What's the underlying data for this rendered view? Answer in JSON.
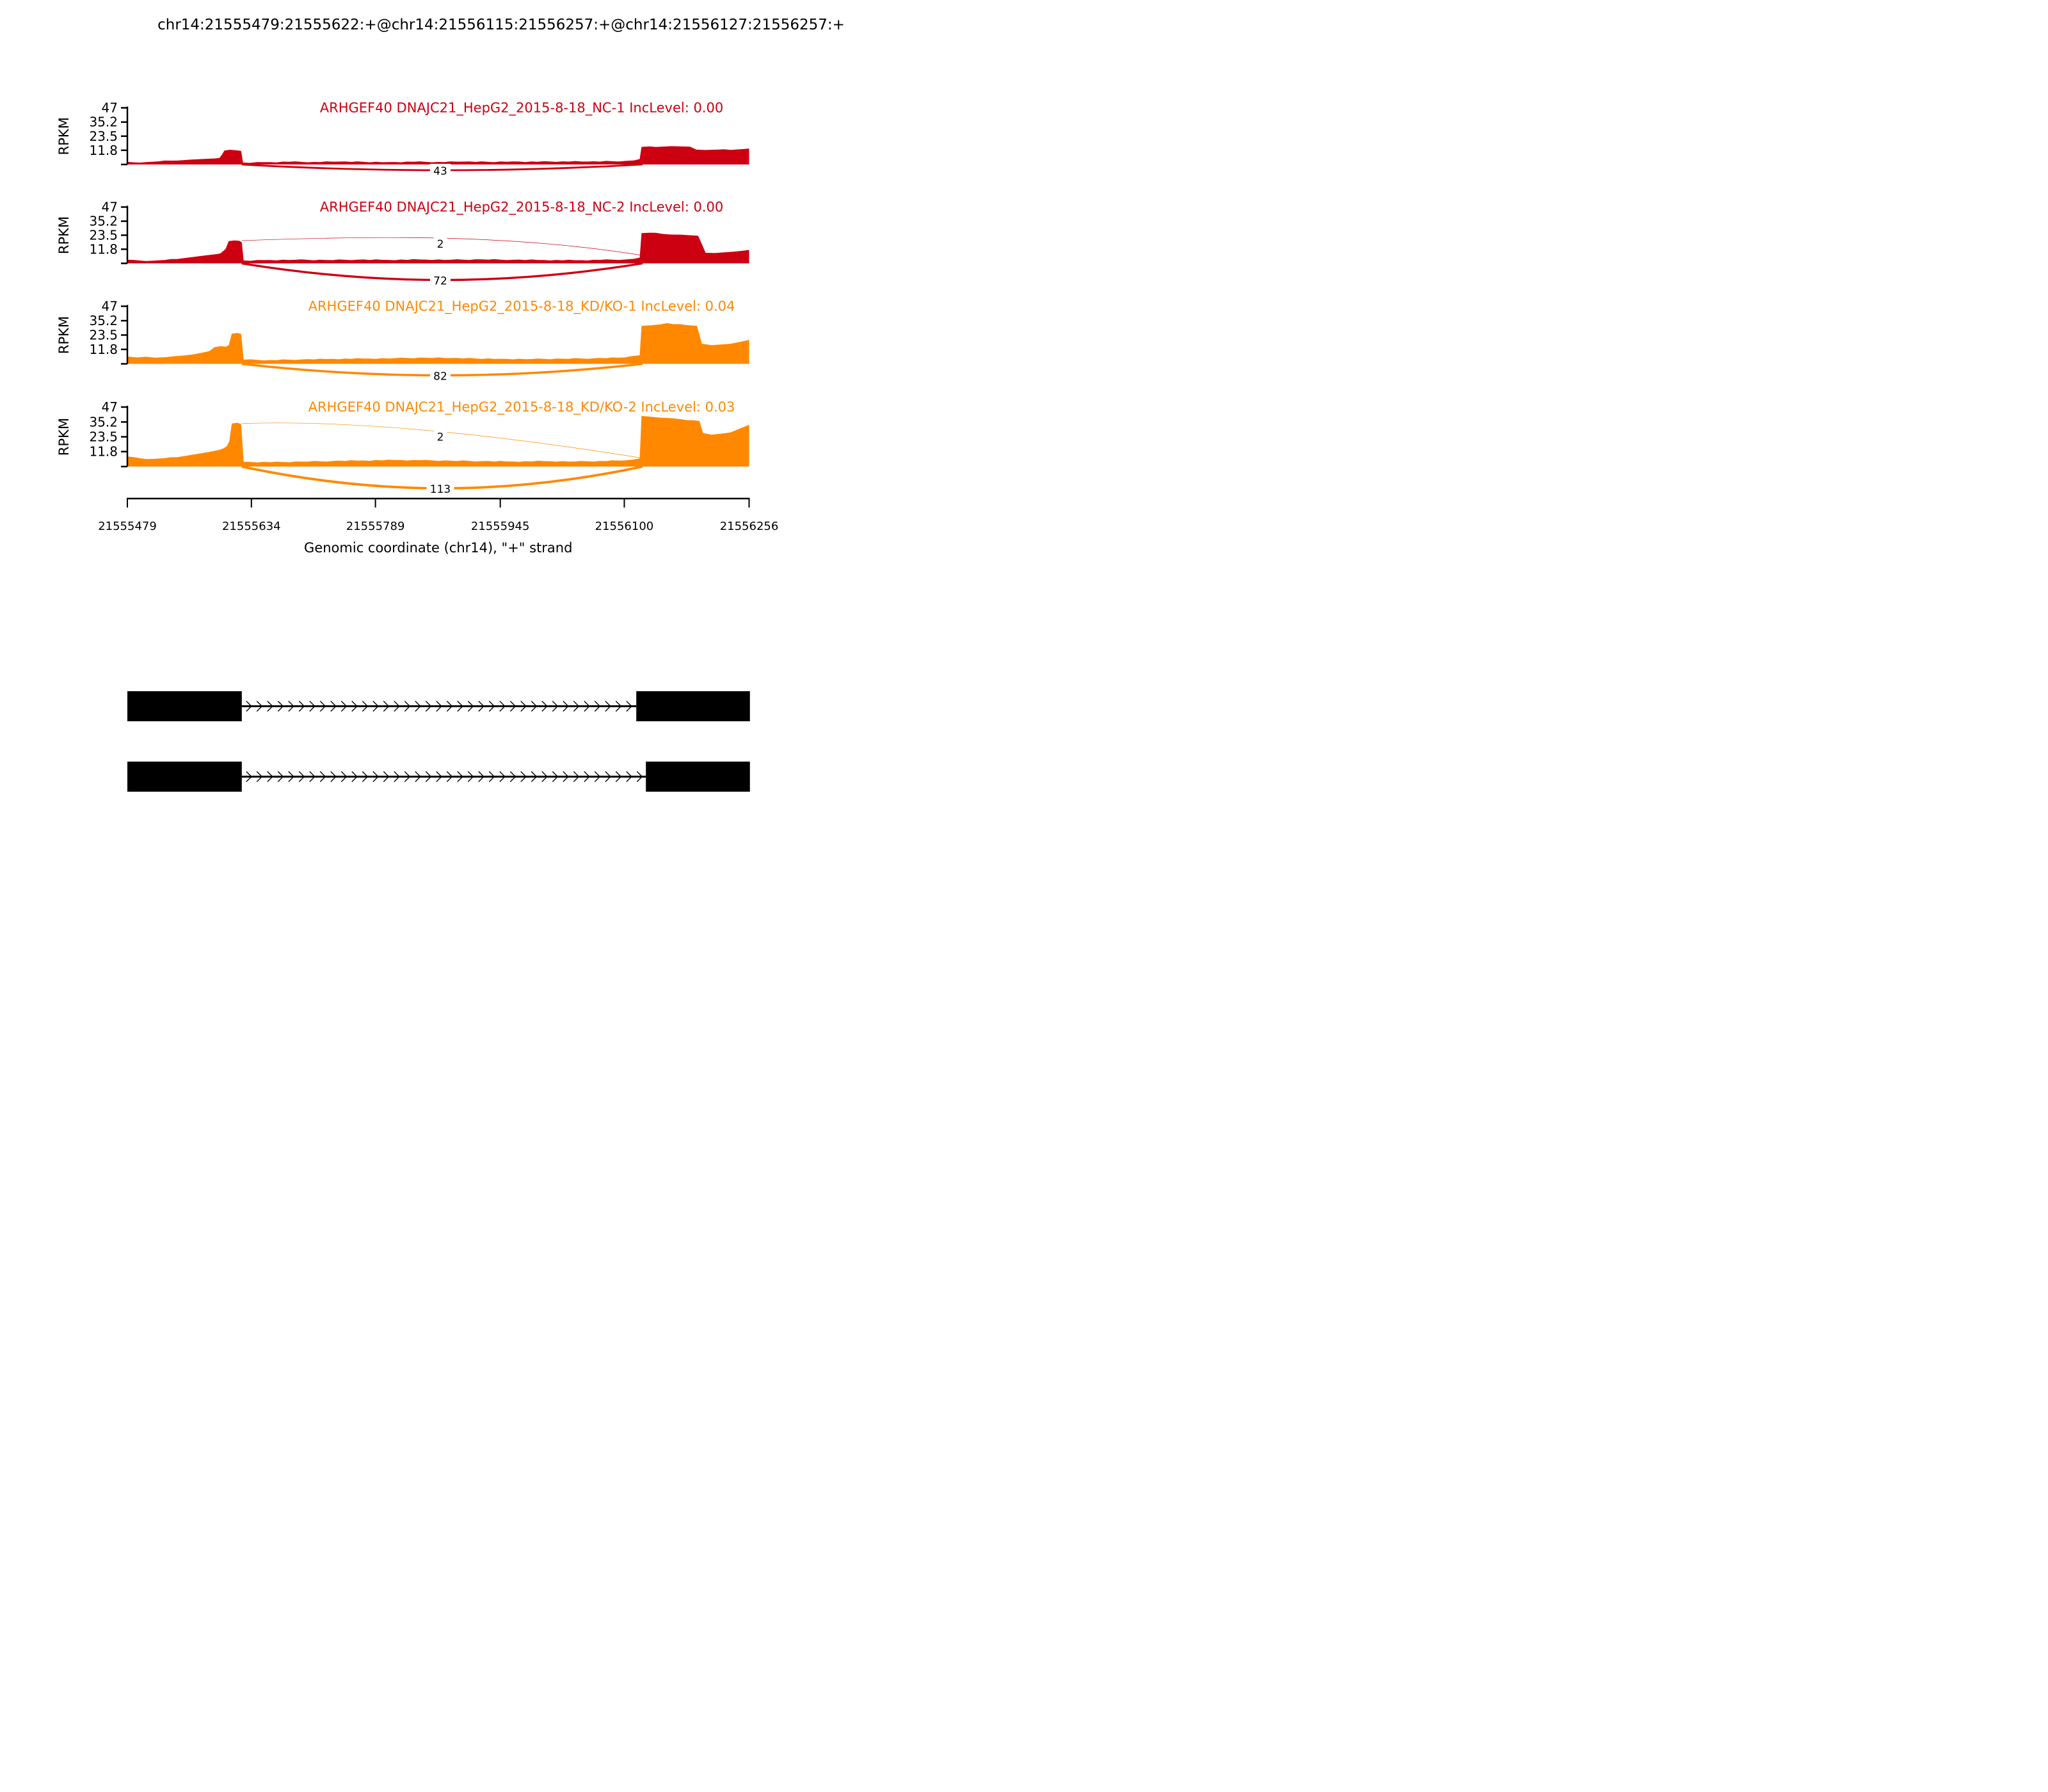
{
  "title": "chr14:21555479:21555622:+@chr14:21556115:21556257:+@chr14:21556127:21556257:+",
  "chart_data": {
    "type": "area",
    "description": "RNA-seq sashimi plot: read coverage (RPKM) with splice-junction read counts for 4 samples, plus two isoform models below",
    "x_axis": {
      "label": "Genomic coordinate (chr14), \"+\" strand",
      "ticks": [
        "21555479",
        "21555634",
        "21555789",
        "21555945",
        "21556100",
        "21556256"
      ],
      "range": [
        21555479,
        21556256
      ]
    },
    "y_axis": {
      "label": "RPKM",
      "ticks": [
        47,
        35.2,
        23.5,
        11.8
      ],
      "range": [
        0,
        47
      ]
    },
    "tracks": [
      {
        "label": "ARHGEF40 DNAJC21_HepG2_2015-8-18_NC-1 IncLevel: 0.00",
        "inc_level": "0.00",
        "color": "#CC0011",
        "junctions": [
          {
            "count": 43,
            "arc": "below"
          }
        ],
        "coverage_profile": [
          [
            0,
            2.2
          ],
          [
            0.01,
            1.8
          ],
          [
            0.03,
            2.0
          ],
          [
            0.05,
            2.6
          ],
          [
            0.07,
            3.2
          ],
          [
            0.09,
            3.6
          ],
          [
            0.1,
            4.0
          ],
          [
            0.115,
            4.4
          ],
          [
            0.13,
            4.8
          ],
          [
            0.14,
            5.0
          ],
          [
            0.148,
            5.4
          ],
          [
            0.152,
            8.0
          ],
          [
            0.156,
            11.6
          ],
          [
            0.165,
            12.2
          ],
          [
            0.175,
            11.8
          ],
          [
            0.183,
            11.2
          ],
          [
            0.186,
            1.6
          ],
          [
            0.22,
            1.9
          ],
          [
            0.26,
            2.3
          ],
          [
            0.3,
            2.1
          ],
          [
            0.34,
            2.4
          ],
          [
            0.38,
            2.2
          ],
          [
            0.42,
            2.0
          ],
          [
            0.46,
            2.3
          ],
          [
            0.5,
            2.1
          ],
          [
            0.54,
            2.4
          ],
          [
            0.58,
            2.2
          ],
          [
            0.62,
            2.5
          ],
          [
            0.66,
            2.3
          ],
          [
            0.7,
            2.6
          ],
          [
            0.74,
            2.4
          ],
          [
            0.78,
            2.7
          ],
          [
            0.8,
            2.9
          ],
          [
            0.815,
            3.4
          ],
          [
            0.824,
            4.5
          ],
          [
            0.827,
            14.6
          ],
          [
            0.84,
            15.0
          ],
          [
            0.86,
            14.8
          ],
          [
            0.875,
            15.2
          ],
          [
            0.89,
            15.0
          ],
          [
            0.905,
            14.8
          ],
          [
            0.915,
            12.4
          ],
          [
            0.93,
            12.0
          ],
          [
            0.95,
            12.4
          ],
          [
            0.97,
            12.1
          ],
          [
            0.985,
            12.6
          ],
          [
            1,
            13.2
          ]
        ]
      },
      {
        "label": "ARHGEF40 DNAJC21_HepG2_2015-8-18_NC-2 IncLevel: 0.00",
        "inc_level": "0.00",
        "color": "#CC0011",
        "junctions": [
          {
            "count": 2,
            "arc": "above",
            "from_rpkm": 19,
            "to_rpkm": 7
          },
          {
            "count": 72,
            "arc": "below"
          }
        ],
        "coverage_profile": [
          [
            0,
            3.0
          ],
          [
            0.02,
            2.4
          ],
          [
            0.04,
            2.2
          ],
          [
            0.06,
            2.8
          ],
          [
            0.08,
            3.6
          ],
          [
            0.095,
            4.6
          ],
          [
            0.11,
            5.6
          ],
          [
            0.125,
            6.6
          ],
          [
            0.135,
            7.2
          ],
          [
            0.145,
            7.8
          ],
          [
            0.15,
            8.4
          ],
          [
            0.158,
            12.0
          ],
          [
            0.163,
            18.6
          ],
          [
            0.172,
            19.2
          ],
          [
            0.18,
            18.8
          ],
          [
            0.184,
            17.6
          ],
          [
            0.187,
            2.4
          ],
          [
            0.22,
            2.7
          ],
          [
            0.27,
            3.0
          ],
          [
            0.32,
            2.8
          ],
          [
            0.37,
            3.1
          ],
          [
            0.42,
            2.9
          ],
          [
            0.47,
            3.2
          ],
          [
            0.52,
            3.0
          ],
          [
            0.57,
            3.3
          ],
          [
            0.62,
            3.0
          ],
          [
            0.67,
            2.8
          ],
          [
            0.72,
            2.6
          ],
          [
            0.76,
            2.9
          ],
          [
            0.8,
            3.2
          ],
          [
            0.815,
            3.8
          ],
          [
            0.824,
            4.8
          ],
          [
            0.827,
            25.2
          ],
          [
            0.84,
            25.6
          ],
          [
            0.86,
            24.6
          ],
          [
            0.88,
            24.0
          ],
          [
            0.9,
            23.6
          ],
          [
            0.918,
            23.0
          ],
          [
            0.924,
            16.0
          ],
          [
            0.93,
            8.8
          ],
          [
            0.945,
            8.6
          ],
          [
            0.96,
            9.2
          ],
          [
            0.975,
            9.8
          ],
          [
            0.99,
            10.6
          ],
          [
            1,
            11.2
          ]
        ]
      },
      {
        "label": "ARHGEF40 DNAJC21_HepG2_2015-8-18_KD/KO-1 IncLevel: 0.04",
        "inc_level": "0.04",
        "color": "#FF8800",
        "junctions": [
          {
            "count": 82,
            "arc": "below"
          }
        ],
        "coverage_profile": [
          [
            0,
            6.0
          ],
          [
            0.015,
            5.2
          ],
          [
            0.03,
            5.8
          ],
          [
            0.045,
            5.0
          ],
          [
            0.06,
            5.4
          ],
          [
            0.075,
            6.2
          ],
          [
            0.09,
            6.8
          ],
          [
            0.105,
            7.6
          ],
          [
            0.115,
            8.6
          ],
          [
            0.125,
            9.6
          ],
          [
            0.132,
            10.4
          ],
          [
            0.14,
            13.6
          ],
          [
            0.15,
            14.4
          ],
          [
            0.158,
            14.0
          ],
          [
            0.163,
            15.2
          ],
          [
            0.168,
            24.6
          ],
          [
            0.177,
            25.2
          ],
          [
            0.183,
            24.4
          ],
          [
            0.187,
            3.4
          ],
          [
            0.23,
            3.1
          ],
          [
            0.28,
            3.6
          ],
          [
            0.33,
            4.0
          ],
          [
            0.38,
            4.3
          ],
          [
            0.43,
            4.6
          ],
          [
            0.48,
            5.0
          ],
          [
            0.52,
            4.7
          ],
          [
            0.56,
            4.4
          ],
          [
            0.6,
            4.1
          ],
          [
            0.65,
            3.9
          ],
          [
            0.7,
            4.2
          ],
          [
            0.75,
            4.5
          ],
          [
            0.79,
            5.0
          ],
          [
            0.81,
            6.2
          ],
          [
            0.824,
            7.0
          ],
          [
            0.827,
            31.0
          ],
          [
            0.84,
            31.4
          ],
          [
            0.858,
            32.2
          ],
          [
            0.868,
            33.2
          ],
          [
            0.878,
            32.4
          ],
          [
            0.9,
            31.6
          ],
          [
            0.916,
            31.0
          ],
          [
            0.924,
            16.4
          ],
          [
            0.94,
            15.2
          ],
          [
            0.955,
            15.8
          ],
          [
            0.97,
            16.4
          ],
          [
            0.985,
            17.8
          ],
          [
            1,
            19.6
          ]
        ]
      },
      {
        "label": "ARHGEF40 DNAJC21_HepG2_2015-8-18_KD/KO-2 IncLevel: 0.03",
        "inc_level": "0.03",
        "color": "#FF8800",
        "junctions": [
          {
            "count": 2,
            "arc": "above",
            "from_rpkm": 34,
            "to_rpkm": 7
          },
          {
            "count": 113,
            "arc": "below"
          }
        ],
        "coverage_profile": [
          [
            0,
            8.0
          ],
          [
            0.02,
            6.6
          ],
          [
            0.04,
            6.0
          ],
          [
            0.06,
            6.6
          ],
          [
            0.08,
            7.4
          ],
          [
            0.095,
            8.6
          ],
          [
            0.11,
            9.8
          ],
          [
            0.12,
            10.6
          ],
          [
            0.13,
            11.4
          ],
          [
            0.14,
            12.4
          ],
          [
            0.148,
            13.2
          ],
          [
            0.154,
            14.2
          ],
          [
            0.16,
            16.0
          ],
          [
            0.164,
            20.0
          ],
          [
            0.168,
            34.0
          ],
          [
            0.177,
            34.6
          ],
          [
            0.183,
            33.4
          ],
          [
            0.187,
            3.8
          ],
          [
            0.23,
            3.4
          ],
          [
            0.28,
            3.9
          ],
          [
            0.33,
            4.4
          ],
          [
            0.38,
            4.8
          ],
          [
            0.43,
            5.2
          ],
          [
            0.47,
            5.0
          ],
          [
            0.52,
            4.6
          ],
          [
            0.57,
            4.3
          ],
          [
            0.62,
            4.0
          ],
          [
            0.67,
            4.3
          ],
          [
            0.72,
            4.0
          ],
          [
            0.76,
            4.4
          ],
          [
            0.8,
            4.8
          ],
          [
            0.815,
            5.6
          ],
          [
            0.824,
            6.4
          ],
          [
            0.827,
            40.0
          ],
          [
            0.845,
            39.2
          ],
          [
            0.868,
            38.4
          ],
          [
            0.89,
            37.4
          ],
          [
            0.91,
            36.6
          ],
          [
            0.92,
            36.0
          ],
          [
            0.926,
            26.4
          ],
          [
            0.94,
            25.2
          ],
          [
            0.955,
            26.0
          ],
          [
            0.97,
            27.0
          ],
          [
            0.985,
            30.0
          ],
          [
            1,
            33.0
          ]
        ]
      }
    ],
    "isoforms": [
      {
        "exons": [
          [
            21555479,
            21555622
          ],
          [
            21556115,
            21556257
          ]
        ],
        "strand": "+"
      },
      {
        "exons": [
          [
            21555479,
            21555622
          ],
          [
            21556127,
            21556257
          ]
        ],
        "strand": "+"
      }
    ]
  }
}
